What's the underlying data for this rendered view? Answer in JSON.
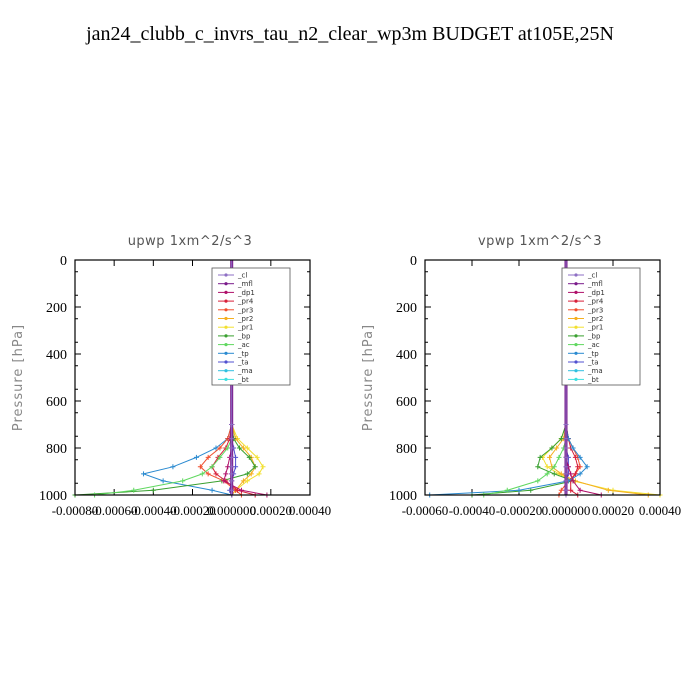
{
  "title": "jan24_clubb_c_invrs_tau_n2_clear_wp3m  BUDGET at105E,25N",
  "legend_entries": [
    {
      "name": "_cl",
      "color": "#8e6fc4"
    },
    {
      "name": "_mfl",
      "color": "#7a1a8a"
    },
    {
      "name": "_dp1",
      "color": "#b0106a"
    },
    {
      "name": "_pr4",
      "color": "#d8203a"
    },
    {
      "name": "_pr3",
      "color": "#f05030"
    },
    {
      "name": "_pr2",
      "color": "#f5b020"
    },
    {
      "name": "_pr1",
      "color": "#f2e030"
    },
    {
      "name": "_bp",
      "color": "#3aa030"
    },
    {
      "name": "_ac",
      "color": "#60d860"
    },
    {
      "name": "_tp",
      "color": "#2a8ad0"
    },
    {
      "name": "_ta",
      "color": "#5050d0"
    },
    {
      "name": "_ma",
      "color": "#30c0e0"
    },
    {
      "name": "_bt",
      "color": "#40e0e0"
    }
  ],
  "chart_data": [
    {
      "type": "line",
      "title": "upwp   1xm^2/s^3",
      "ylabel": "Pressure [hPa]",
      "xlabel": "",
      "xlim": [
        -0.0008,
        0.0004
      ],
      "ylim": [
        1000,
        0
      ],
      "xticks": [
        -0.0008,
        -0.0006,
        -0.0004,
        -0.0002,
        0.0,
        0.0002,
        0.0004
      ],
      "xtick_labels": [
        "-0.00080",
        "-0.00060",
        "-0.00040",
        "-0.00020",
        "0.000000",
        "0.00020",
        "0.00040"
      ],
      "yticks": [
        0,
        200,
        400,
        600,
        800,
        1000
      ],
      "ytick_labels": [
        "0",
        "200",
        "400",
        "600",
        "800",
        "1000"
      ],
      "legend_location": "top-right",
      "series": [
        {
          "name": "_tp",
          "x": [
            0,
            0,
            -2e-05,
            -8e-05,
            -0.00018,
            -0.0003,
            -0.00045,
            -0.00035,
            -0.0001,
            0
          ],
          "y": [
            0,
            700,
            760,
            800,
            840,
            880,
            910,
            940,
            980,
            1000
          ]
        },
        {
          "name": "_pr1",
          "x": [
            0,
            0,
            3e-05,
            8e-05,
            0.00013,
            0.00016,
            0.00014,
            8e-05,
            2e-05,
            0
          ],
          "y": [
            0,
            700,
            760,
            800,
            840,
            880,
            910,
            940,
            980,
            1000
          ]
        },
        {
          "name": "_pr2",
          "x": [
            0,
            0,
            2e-05,
            6e-05,
            0.0001,
            0.00012,
            0.0001,
            6e-05,
            2e-05,
            0
          ],
          "y": [
            0,
            700,
            760,
            800,
            840,
            880,
            910,
            940,
            980,
            1000
          ]
        },
        {
          "name": "_bp",
          "x": [
            0,
            0,
            1e-05,
            4e-05,
            9e-05,
            0.00012,
            8e-05,
            -5e-05,
            -0.0004,
            -0.0008
          ],
          "y": [
            0,
            700,
            760,
            800,
            840,
            880,
            910,
            940,
            980,
            1000
          ]
        },
        {
          "name": "_pr3",
          "x": [
            0,
            0,
            -2e-05,
            -6e-05,
            -0.00012,
            -0.00016,
            -0.00012,
            -4e-05,
            2e-05,
            5e-05
          ],
          "y": [
            0,
            700,
            760,
            800,
            840,
            880,
            910,
            940,
            980,
            1000
          ]
        },
        {
          "name": "_pr4",
          "x": [
            0,
            0,
            -1e-05,
            -3e-05,
            -7e-05,
            -0.0001,
            -8e-05,
            -3e-05,
            3e-05,
            0.00012
          ],
          "y": [
            0,
            700,
            760,
            800,
            840,
            880,
            910,
            940,
            980,
            1000
          ]
        },
        {
          "name": "_ac",
          "x": [
            0,
            0,
            0,
            -2e-05,
            -6e-05,
            -0.0001,
            -0.00015,
            -0.00025,
            -0.0005,
            -0.0007
          ],
          "y": [
            0,
            700,
            760,
            800,
            840,
            880,
            910,
            940,
            980,
            1000
          ]
        },
        {
          "name": "_ta",
          "x": [
            0,
            0,
            0,
            1e-05,
            2e-05,
            2e-05,
            1e-05,
            0,
            -1e-05,
            0
          ],
          "y": [
            0,
            700,
            760,
            800,
            840,
            880,
            910,
            940,
            980,
            1000
          ]
        },
        {
          "name": "_dp1",
          "x": [
            0,
            0,
            0,
            0,
            -1e-05,
            -2e-05,
            -3e-05,
            -4e-05,
            5e-05,
            0.00018
          ],
          "y": [
            0,
            700,
            760,
            800,
            840,
            880,
            910,
            940,
            980,
            1000
          ]
        },
        {
          "name": "_mfl",
          "x": [
            0,
            0,
            0,
            0,
            0,
            0,
            0,
            0,
            0,
            0
          ],
          "y": [
            0,
            700,
            760,
            800,
            840,
            880,
            910,
            940,
            980,
            1000
          ]
        },
        {
          "name": "_cl",
          "x": [
            0,
            0,
            0,
            0,
            0,
            0,
            0,
            0,
            0,
            0
          ],
          "y": [
            0,
            700,
            760,
            800,
            840,
            880,
            910,
            940,
            980,
            1000
          ]
        }
      ]
    },
    {
      "type": "line",
      "title": "vpwp   1xm^2/s^3",
      "ylabel": "Pressure [hPa]",
      "xlabel": "",
      "xlim": [
        -0.0006,
        0.0004
      ],
      "ylim": [
        1000,
        0
      ],
      "xticks": [
        -0.0006,
        -0.0004,
        -0.0002,
        0.0,
        0.0002,
        0.0004
      ],
      "xtick_labels": [
        "-0.00060",
        "-0.00040",
        "-0.00020",
        "0.000000",
        "0.00020",
        "0.00040"
      ],
      "yticks": [
        0,
        200,
        400,
        600,
        800,
        1000
      ],
      "ytick_labels": [
        "0",
        "200",
        "400",
        "600",
        "800",
        "1000"
      ],
      "legend_location": "top-right",
      "series": [
        {
          "name": "_pr1",
          "x": [
            0,
            0,
            -2e-05,
            -6e-05,
            -0.0001,
            -8e-05,
            -3e-05,
            3e-05,
            0.0002,
            0.0004
          ],
          "y": [
            0,
            700,
            760,
            800,
            840,
            880,
            910,
            940,
            980,
            1000
          ]
        },
        {
          "name": "_pr2",
          "x": [
            0,
            0,
            -1e-05,
            -4e-05,
            -7e-05,
            -6e-05,
            -2e-05,
            4e-05,
            0.00018,
            0.00035
          ],
          "y": [
            0,
            700,
            760,
            800,
            840,
            880,
            910,
            940,
            980,
            1000
          ]
        },
        {
          "name": "_bp",
          "x": [
            0,
            0,
            -2e-05,
            -6e-05,
            -0.00011,
            -0.00012,
            -5e-05,
            3e-05,
            -0.00015,
            -0.0004
          ],
          "y": [
            0,
            700,
            760,
            800,
            840,
            880,
            910,
            940,
            980,
            1000
          ]
        },
        {
          "name": "_pr3",
          "x": [
            0,
            0,
            1e-05,
            3e-05,
            5e-05,
            6e-05,
            4e-05,
            1e-05,
            -2e-05,
            -3e-05
          ],
          "y": [
            0,
            700,
            760,
            800,
            840,
            880,
            910,
            940,
            980,
            1000
          ]
        },
        {
          "name": "_pr4",
          "x": [
            0,
            0,
            1e-05,
            2e-05,
            4e-05,
            5e-05,
            4e-05,
            2e-05,
            2e-05,
            5e-05
          ],
          "y": [
            0,
            700,
            760,
            800,
            840,
            880,
            910,
            940,
            980,
            1000
          ]
        },
        {
          "name": "_tp",
          "x": [
            0,
            0,
            1e-05,
            3e-05,
            6e-05,
            9e-05,
            6e-05,
            1e-05,
            -0.0002,
            -0.00058
          ],
          "y": [
            0,
            700,
            760,
            800,
            840,
            880,
            910,
            940,
            980,
            1000
          ]
        },
        {
          "name": "_ac",
          "x": [
            0,
            0,
            0,
            -1e-05,
            -3e-05,
            -5e-05,
            -8e-05,
            -0.00012,
            -0.00025,
            -0.00035
          ],
          "y": [
            0,
            700,
            760,
            800,
            840,
            880,
            910,
            940,
            980,
            1000
          ]
        },
        {
          "name": "_ta",
          "x": [
            0,
            0,
            0,
            0,
            1e-05,
            1e-05,
            1e-05,
            0,
            0,
            0
          ],
          "y": [
            0,
            700,
            760,
            800,
            840,
            880,
            910,
            940,
            980,
            1000
          ]
        },
        {
          "name": "_dp1",
          "x": [
            0,
            0,
            0,
            0,
            0,
            1e-05,
            2e-05,
            3e-05,
            6e-05,
            0.00015
          ],
          "y": [
            0,
            700,
            760,
            800,
            840,
            880,
            910,
            940,
            980,
            1000
          ]
        },
        {
          "name": "_mfl",
          "x": [
            0,
            0,
            0,
            0,
            0,
            0,
            0,
            0,
            0,
            0
          ],
          "y": [
            0,
            700,
            760,
            800,
            840,
            880,
            910,
            940,
            980,
            1000
          ]
        },
        {
          "name": "_cl",
          "x": [
            0,
            0,
            0,
            0,
            0,
            0,
            0,
            0,
            0,
            0
          ],
          "y": [
            0,
            700,
            760,
            800,
            840,
            880,
            910,
            940,
            980,
            1000
          ]
        }
      ]
    }
  ]
}
